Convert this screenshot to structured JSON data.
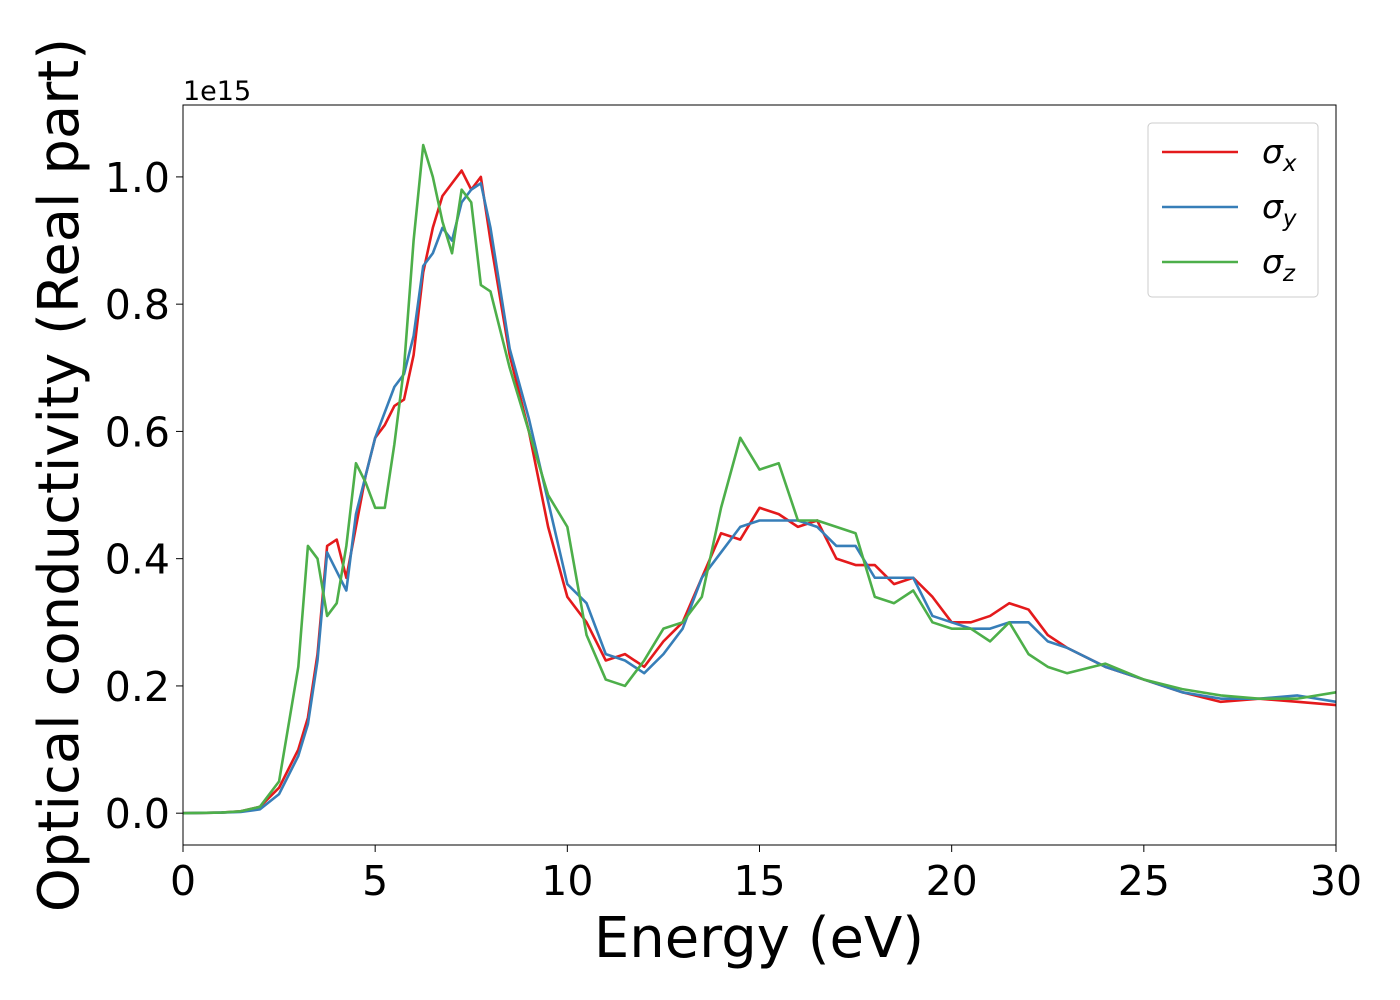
{
  "chart_data": {
    "type": "line",
    "xlabel": "Energy (eV)",
    "ylabel": "Optical conductivity (Real part)",
    "y_offset_label": "1e15",
    "x": [
      0,
      1,
      1.5,
      2,
      2.5,
      3,
      3.25,
      3.5,
      3.75,
      4,
      4.25,
      4.5,
      4.75,
      5,
      5.25,
      5.5,
      5.75,
      6,
      6.25,
      6.5,
      6.75,
      7,
      7.25,
      7.5,
      7.75,
      8,
      8.5,
      9,
      9.5,
      10,
      10.5,
      11,
      11.5,
      12,
      12.5,
      13,
      13.5,
      14,
      14.5,
      15,
      15.5,
      16,
      16.5,
      17,
      17.5,
      18,
      18.5,
      19,
      19.5,
      20,
      20.5,
      21,
      21.5,
      22,
      22.5,
      23,
      24,
      25,
      26,
      27,
      28,
      29,
      30
    ],
    "series": [
      {
        "name": "σx",
        "color": "#e41a1c",
        "values": [
          0,
          0.001,
          0.003,
          0.01,
          0.04,
          0.1,
          0.15,
          0.25,
          0.42,
          0.43,
          0.37,
          0.45,
          0.53,
          0.59,
          0.61,
          0.64,
          0.65,
          0.72,
          0.85,
          0.92,
          0.97,
          0.99,
          1.01,
          0.98,
          1.0,
          0.9,
          0.72,
          0.6,
          0.45,
          0.34,
          0.3,
          0.24,
          0.25,
          0.23,
          0.27,
          0.3,
          0.37,
          0.44,
          0.43,
          0.48,
          0.47,
          0.45,
          0.46,
          0.4,
          0.39,
          0.39,
          0.36,
          0.37,
          0.34,
          0.3,
          0.3,
          0.31,
          0.33,
          0.32,
          0.28,
          0.26,
          0.23,
          0.21,
          0.19,
          0.175,
          0.18,
          0.175,
          0.17
        ]
      },
      {
        "name": "σy",
        "color": "#377eb8",
        "values": [
          0,
          0.001,
          0.002,
          0.006,
          0.03,
          0.09,
          0.14,
          0.24,
          0.41,
          0.38,
          0.35,
          0.47,
          0.53,
          0.59,
          0.63,
          0.67,
          0.69,
          0.75,
          0.86,
          0.88,
          0.92,
          0.9,
          0.96,
          0.98,
          0.99,
          0.92,
          0.73,
          0.62,
          0.49,
          0.36,
          0.33,
          0.25,
          0.24,
          0.22,
          0.25,
          0.29,
          0.37,
          0.41,
          0.45,
          0.46,
          0.46,
          0.46,
          0.45,
          0.42,
          0.42,
          0.37,
          0.37,
          0.37,
          0.31,
          0.3,
          0.29,
          0.29,
          0.3,
          0.3,
          0.27,
          0.26,
          0.23,
          0.21,
          0.19,
          0.18,
          0.18,
          0.185,
          0.175
        ]
      },
      {
        "name": "σz",
        "color": "#4daf4a",
        "values": [
          0,
          0.001,
          0.003,
          0.01,
          0.05,
          0.23,
          0.42,
          0.4,
          0.31,
          0.33,
          0.42,
          0.55,
          0.52,
          0.48,
          0.48,
          0.58,
          0.7,
          0.9,
          1.05,
          1.0,
          0.93,
          0.88,
          0.98,
          0.96,
          0.83,
          0.82,
          0.7,
          0.6,
          0.5,
          0.45,
          0.28,
          0.21,
          0.2,
          0.24,
          0.29,
          0.3,
          0.34,
          0.48,
          0.59,
          0.54,
          0.55,
          0.46,
          0.46,
          0.45,
          0.44,
          0.34,
          0.33,
          0.35,
          0.3,
          0.29,
          0.29,
          0.27,
          0.3,
          0.25,
          0.23,
          0.22,
          0.235,
          0.21,
          0.195,
          0.185,
          0.18,
          0.18,
          0.19
        ]
      }
    ],
    "xlim": [
      0,
      30
    ],
    "ylim": [
      -0.05,
      1.113
    ],
    "xticks": [
      0,
      5,
      10,
      15,
      20,
      25,
      30
    ],
    "yticks": [
      {
        "value": 0,
        "label": "0.0"
      },
      0.2,
      0.4,
      0.6,
      0.8,
      {
        "value": 1,
        "label": "1.0"
      }
    ],
    "grid": false,
    "legend": "upper right"
  }
}
